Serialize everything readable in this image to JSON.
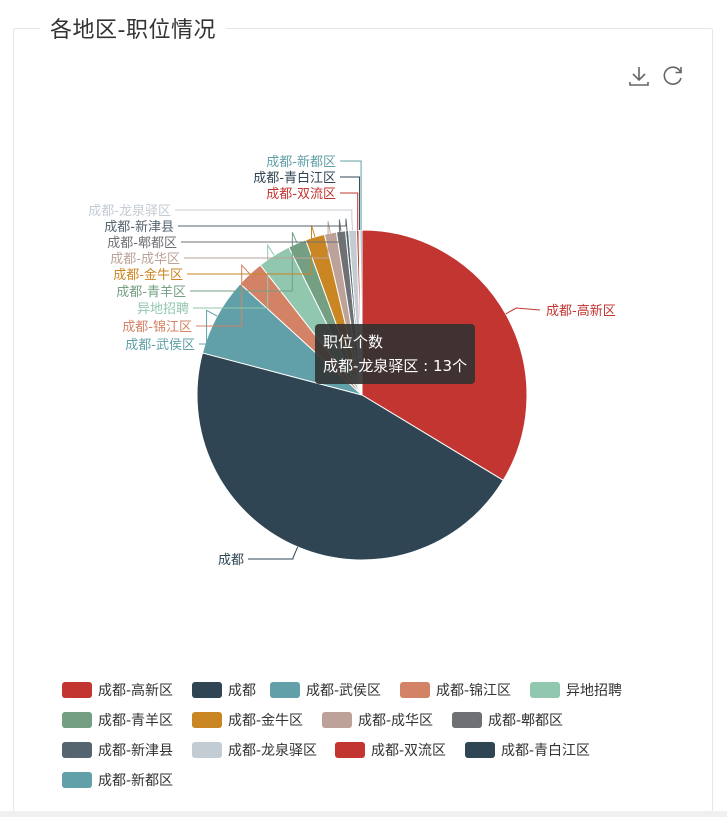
{
  "panel": {
    "title": "各地区-职位情况"
  },
  "toolbar": {
    "download_icon": "download-icon",
    "refresh_icon": "refresh-icon"
  },
  "tooltip": {
    "title": "职位个数",
    "line": "成都-龙泉驿区 : 13个"
  },
  "chart_data": {
    "type": "pie",
    "series_name": "职位个数",
    "unit": "个",
    "legend_position": "bottom",
    "slices": [
      {
        "name": "成都-高新区",
        "value": 570,
        "color": "#c23531"
      },
      {
        "name": "成都",
        "value": 770,
        "color": "#2f4554"
      },
      {
        "name": "成都-武侯区",
        "value": 130,
        "color": "#61a0a8"
      },
      {
        "name": "成都-锦江区",
        "value": 45,
        "color": "#d48265"
      },
      {
        "name": "异地招聘",
        "value": 55,
        "color": "#91c7ae"
      },
      {
        "name": "成都-青羊区",
        "value": 30,
        "color": "#749f83"
      },
      {
        "name": "成都-金牛区",
        "value": 32,
        "color": "#ca8622"
      },
      {
        "name": "成都-成华区",
        "value": 20,
        "color": "#bda29a"
      },
      {
        "name": "成都-郫都区",
        "value": 15,
        "color": "#6e7074"
      },
      {
        "name": "成都-新津县",
        "value": 5,
        "color": "#546570"
      },
      {
        "name": "成都-龙泉驿区",
        "value": 13,
        "color": "#c4ccd3"
      },
      {
        "name": "成都-双流区",
        "value": 4,
        "color": "#c23531"
      },
      {
        "name": "成都-青白江区",
        "value": 2,
        "color": "#2f4554"
      },
      {
        "name": "成都-新都区",
        "value": 3,
        "color": "#61a0a8"
      }
    ]
  }
}
